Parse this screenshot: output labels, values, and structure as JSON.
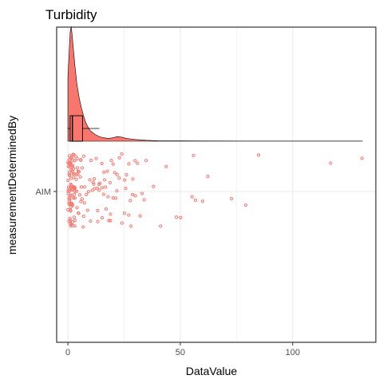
{
  "chart_data": {
    "type": "raincloud",
    "title": "Turbidity",
    "xlabel": "DataValue",
    "ylabel": "measurementDeterminedBy",
    "categories": [
      "AIM"
    ],
    "xlim": [
      -5,
      137
    ],
    "x_ticks": [
      0,
      50,
      100
    ],
    "grid": true,
    "colors": {
      "fill": "#f8766d",
      "outline": "#000000",
      "point": "#f8766d",
      "grid": "#ebebeb",
      "panel_border": "#333333"
    },
    "boxplot": {
      "q1": 1,
      "median": 2,
      "q3": 6.5,
      "whisker_low": 0,
      "whisker_high": 14
    },
    "density": [
      [
        0,
        0.55
      ],
      [
        1,
        0.95
      ],
      [
        1.5,
        1.0
      ],
      [
        2,
        0.9
      ],
      [
        3,
        0.68
      ],
      [
        4,
        0.5
      ],
      [
        5,
        0.38
      ],
      [
        6,
        0.29
      ],
      [
        7,
        0.22
      ],
      [
        8,
        0.16
      ],
      [
        9,
        0.12
      ],
      [
        10,
        0.09
      ],
      [
        12,
        0.06
      ],
      [
        14,
        0.04
      ],
      [
        16,
        0.03
      ],
      [
        18,
        0.025
      ],
      [
        20,
        0.03
      ],
      [
        22,
        0.04
      ],
      [
        24,
        0.035
      ],
      [
        26,
        0.025
      ],
      [
        28,
        0.02
      ],
      [
        30,
        0.015
      ],
      [
        35,
        0.008
      ],
      [
        40,
        0.004
      ],
      [
        50,
        0.003
      ],
      [
        60,
        0.002
      ],
      [
        80,
        0.001
      ],
      [
        100,
        0.001
      ],
      [
        131,
        0.001
      ]
    ],
    "points": [
      0.1,
      0.2,
      0.3,
      0.4,
      0.5,
      0.6,
      0.7,
      0.8,
      0.9,
      1.0,
      1.1,
      1.2,
      1.3,
      1.4,
      1.5,
      1.6,
      1.7,
      1.8,
      1.9,
      2.0,
      0.15,
      0.35,
      0.55,
      0.75,
      0.95,
      1.15,
      1.35,
      1.55,
      1.75,
      1.95,
      2.2,
      2.4,
      2.6,
      2.8,
      3.0,
      0.25,
      0.45,
      0.65,
      0.85,
      1.05,
      1.25,
      1.45,
      1.65,
      1.85,
      2.1,
      2.3,
      2.5,
      2.7,
      2.9,
      3.2,
      0.3,
      0.6,
      0.9,
      1.2,
      1.5,
      1.8,
      2.1,
      2.4,
      2.7,
      3.0,
      3.4,
      3.8,
      4.2,
      4.6,
      5.0,
      0.5,
      1.0,
      1.5,
      2.0,
      2.5,
      3.0,
      3.5,
      4.0,
      4.5,
      5.5,
      6.0,
      6.5,
      7.0,
      7.5,
      8.0,
      0.2,
      0.8,
      1.4,
      2.0,
      2.6,
      3.2,
      3.8,
      4.4,
      5.0,
      5.6,
      6.2,
      6.8,
      7.4,
      8.6,
      9.2,
      1.0,
      1.3,
      1.6,
      1.9,
      2.2,
      2.5,
      2.8,
      3.1,
      3.6,
      4.1,
      4.8,
      5.3,
      6.4,
      7.2,
      9.8,
      10,
      10.5,
      11,
      11.5,
      12,
      12.5,
      13,
      13.5,
      14,
      14.5,
      15,
      15.5,
      16,
      16.5,
      17,
      17.5,
      18,
      18.5,
      19,
      19.5,
      20,
      21,
      22,
      23,
      24,
      25,
      26,
      27,
      28,
      29,
      30,
      31,
      32,
      33,
      34,
      35,
      11,
      13,
      15,
      17,
      19,
      21,
      23,
      25,
      27,
      29,
      12,
      14,
      16,
      18,
      20,
      22,
      24,
      26,
      28,
      30,
      38,
      41,
      44,
      48,
      50,
      55,
      56,
      57,
      60,
      62,
      73,
      79,
      85,
      117,
      131
    ]
  }
}
